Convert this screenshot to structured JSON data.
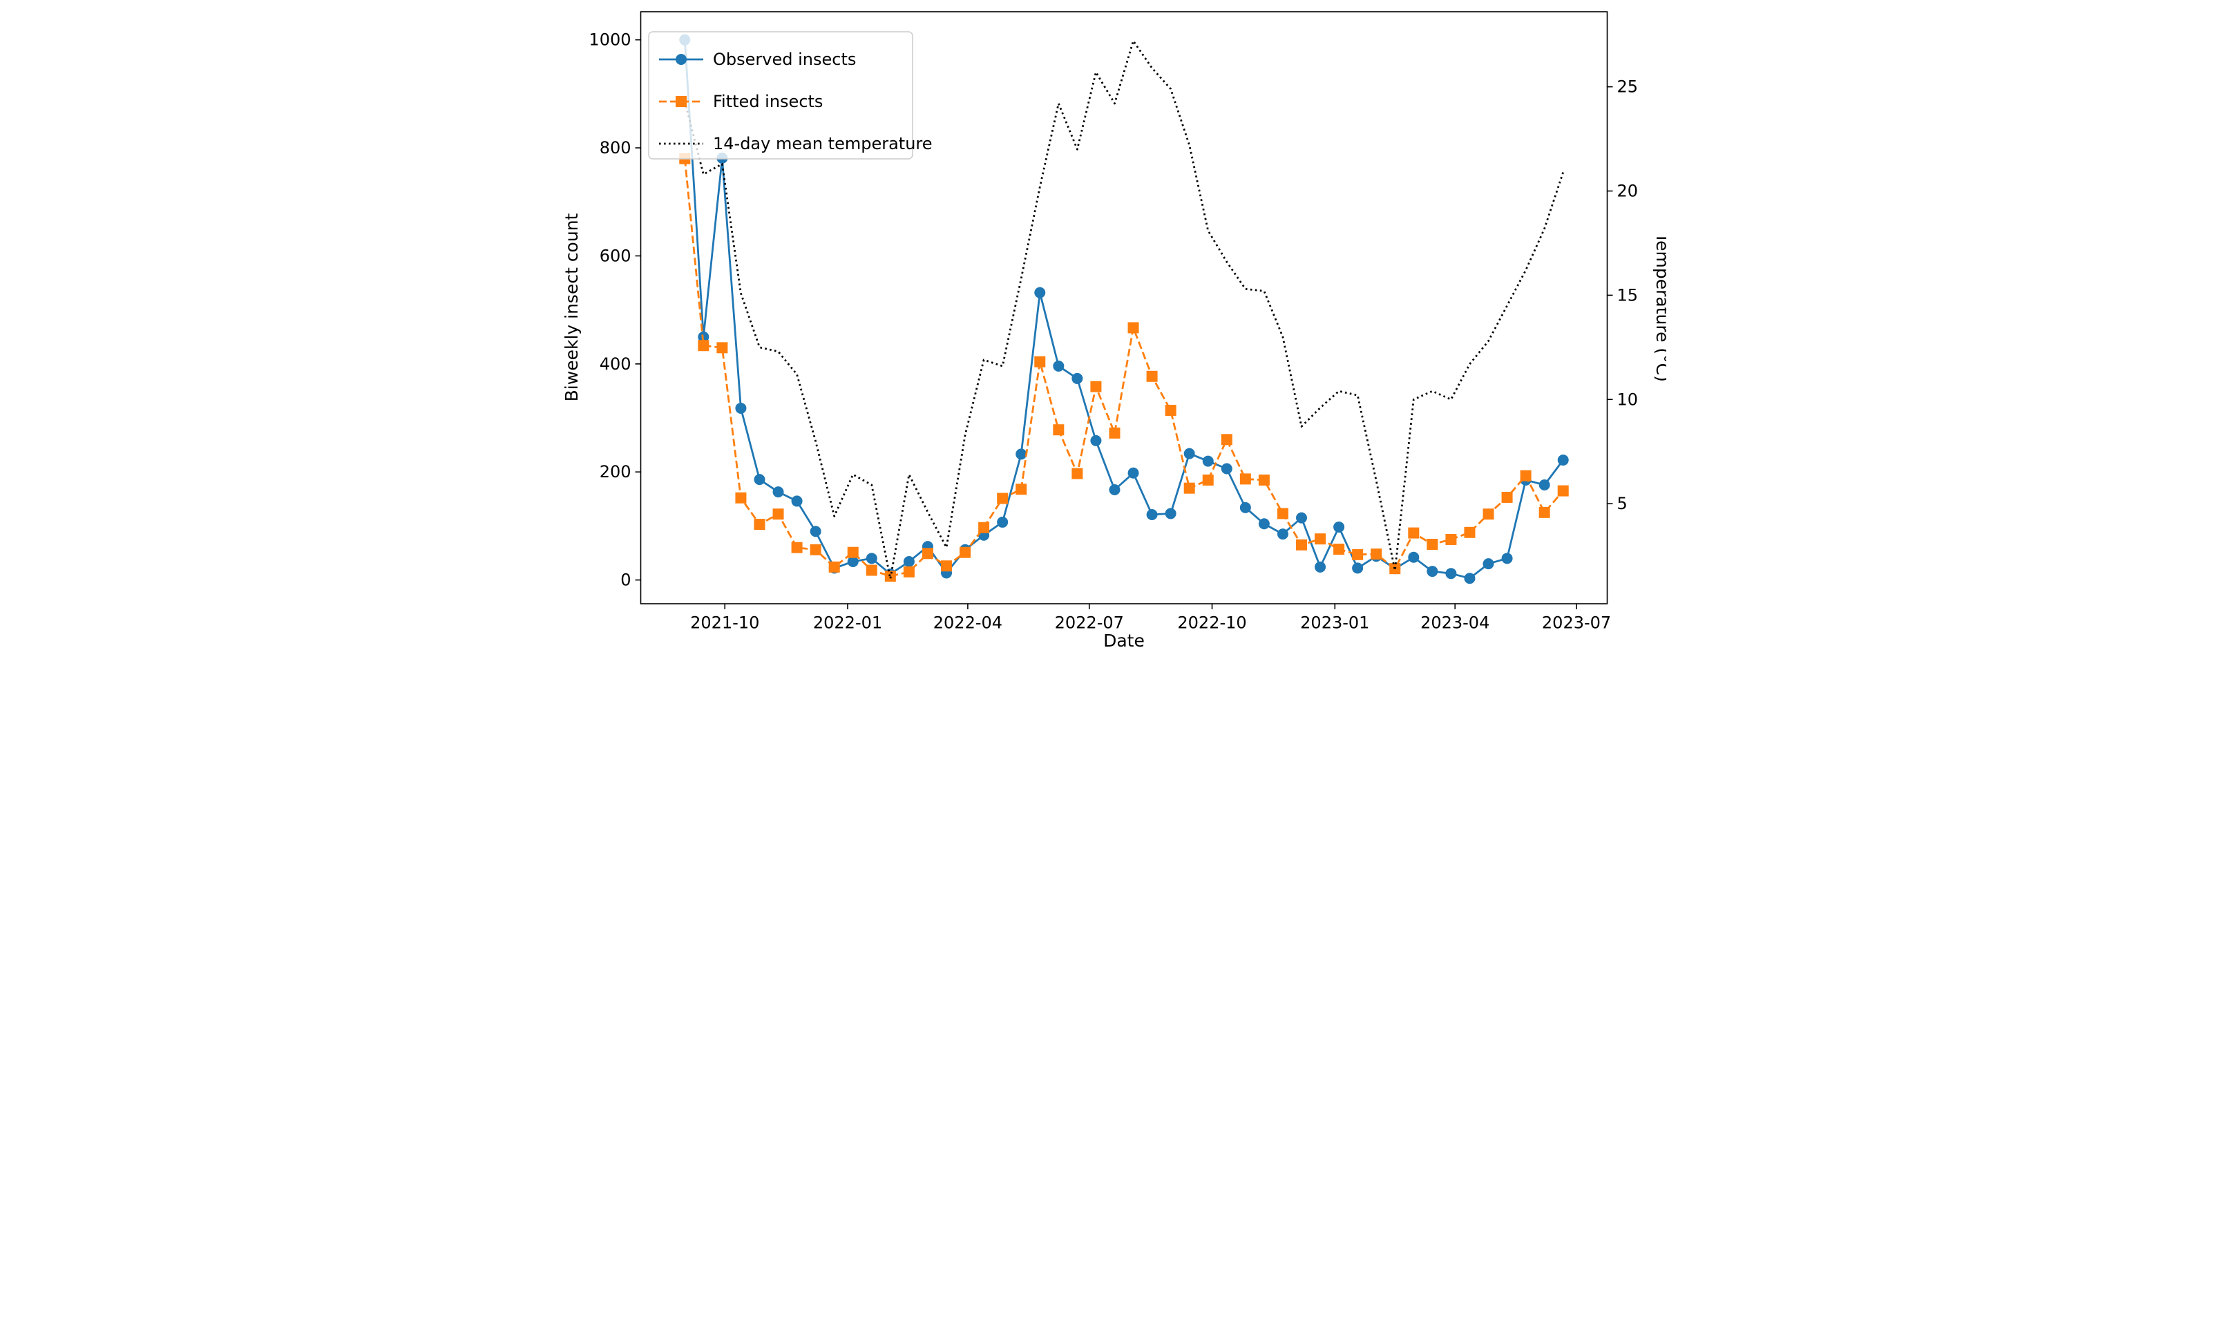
{
  "figure": {
    "background": "#ffffff",
    "plot_border_color": "#000000"
  },
  "chart_data": {
    "type": "line",
    "title": "",
    "xlabel": "Date",
    "ylabel_left": "Biweekly insect count",
    "ylabel_right": "Temperature (°C)",
    "grid": false,
    "legend_position": "upper left",
    "xlim": [
      "2021-07-30",
      "2023-07-24"
    ],
    "ylim_left": [
      -44,
      1052
    ],
    "ylim_right": [
      0.2,
      28.6
    ],
    "x_tick_dates": [
      "2021-10-01",
      "2022-01-01",
      "2022-04-01",
      "2022-07-01",
      "2022-10-01",
      "2023-01-01",
      "2023-04-01",
      "2023-07-01"
    ],
    "x_tick_labels": [
      "2021-10",
      "2022-01",
      "2022-04",
      "2022-07",
      "2022-10",
      "2023-01",
      "2023-04",
      "2023-07"
    ],
    "y_ticks_left": [
      0,
      200,
      400,
      600,
      800,
      1000
    ],
    "y_ticks_right": [
      5,
      10,
      15,
      20,
      25
    ],
    "x": [
      "2021-09-01",
      "2021-09-15",
      "2021-09-29",
      "2021-10-13",
      "2021-10-27",
      "2021-11-10",
      "2021-11-24",
      "2021-12-08",
      "2021-12-22",
      "2022-01-05",
      "2022-01-19",
      "2022-02-02",
      "2022-02-16",
      "2022-03-02",
      "2022-03-16",
      "2022-03-30",
      "2022-04-13",
      "2022-04-27",
      "2022-05-11",
      "2022-05-25",
      "2022-06-08",
      "2022-06-22",
      "2022-07-06",
      "2022-07-20",
      "2022-08-03",
      "2022-08-17",
      "2022-08-31",
      "2022-09-14",
      "2022-09-28",
      "2022-10-12",
      "2022-10-26",
      "2022-11-09",
      "2022-11-23",
      "2022-12-07",
      "2022-12-21",
      "2023-01-04",
      "2023-01-18",
      "2023-02-01",
      "2023-02-15",
      "2023-03-01",
      "2023-03-15",
      "2023-03-29",
      "2023-04-12",
      "2023-04-26",
      "2023-05-10",
      "2023-05-24",
      "2023-06-07",
      "2023-06-21"
    ],
    "series": [
      {
        "name": "Observed insects",
        "color": "#1f77b4",
        "marker": "circle",
        "linestyle": "solid",
        "axis": "left",
        "values": [
          1000,
          450,
          781,
          318,
          186,
          163,
          146,
          90,
          22,
          34,
          40,
          11,
          34,
          62,
          13,
          56,
          83,
          107,
          233,
          532,
          396,
          373,
          258,
          167,
          198,
          121,
          123,
          234,
          220,
          206,
          134,
          104,
          85,
          115,
          24,
          98,
          22,
          44,
          21,
          42,
          16,
          12,
          3,
          30,
          40,
          185,
          176,
          222
        ]
      },
      {
        "name": "Fitted insects",
        "color": "#ff7f0e",
        "marker": "square",
        "linestyle": "dashed",
        "axis": "left",
        "values": [
          780,
          434,
          430,
          152,
          103,
          122,
          60,
          56,
          24,
          51,
          18,
          7,
          15,
          49,
          26,
          51,
          97,
          151,
          168,
          404,
          278,
          197,
          358,
          272,
          467,
          377,
          314,
          170,
          185,
          260,
          187,
          185,
          123,
          65,
          76,
          57,
          47,
          48,
          21,
          87,
          66,
          75,
          88,
          122,
          153,
          193,
          125,
          165
        ]
      },
      {
        "name": "14-day mean temperature",
        "color": "#000000",
        "marker": "none",
        "linestyle": "dotted",
        "axis": "right",
        "values": [
          24.3,
          20.8,
          21.3,
          15.1,
          12.5,
          12.3,
          11.2,
          8.0,
          4.4,
          6.4,
          5.9,
          1.4,
          6.4,
          4.6,
          2.9,
          8.3,
          11.9,
          11.6,
          15.8,
          20.2,
          24.2,
          22.0,
          25.7,
          24.2,
          27.2,
          25.9,
          24.9,
          22.2,
          18.1,
          16.6,
          15.3,
          15.2,
          13.0,
          8.7,
          9.6,
          10.4,
          10.2,
          6.1,
          1.8,
          10.0,
          10.4,
          10.0,
          11.7,
          12.8,
          14.5,
          16.2,
          18.2,
          20.9
        ]
      }
    ]
  }
}
